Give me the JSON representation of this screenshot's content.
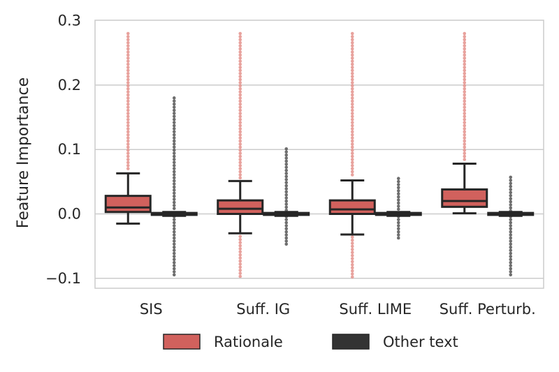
{
  "chart_data": {
    "type": "box",
    "title": "",
    "xlabel": "",
    "ylabel": "Feature Importance",
    "ylim": [
      -0.115,
      0.3
    ],
    "yticks": [
      -0.1,
      0.0,
      0.1,
      0.2,
      0.3
    ],
    "ytick_labels": [
      "−0.1",
      "0.0",
      "0.1",
      "0.2",
      "0.3"
    ],
    "grid": "horizontal",
    "legend_position": "bottom-center",
    "categories": [
      "SIS",
      "Suff. IG",
      "Suff. LIME",
      "Suff. Perturb."
    ],
    "series": [
      {
        "name": "Rationale",
        "color": "#d1615d",
        "outlier_color": "#e4928c",
        "boxes": [
          {
            "q1": 0.003,
            "median": 0.01,
            "q3": 0.028,
            "whisker_low": -0.015,
            "whisker_high": 0.063,
            "outliers_high": [
              0.068,
              0.28
            ],
            "outliers_low": []
          },
          {
            "q1": 0.0,
            "median": 0.008,
            "q3": 0.021,
            "whisker_low": -0.03,
            "whisker_high": 0.051,
            "outliers_high": [
              0.055,
              0.28
            ],
            "outliers_low": [
              -0.035,
              -0.098
            ]
          },
          {
            "q1": 0.0,
            "median": 0.007,
            "q3": 0.021,
            "whisker_low": -0.032,
            "whisker_high": 0.052,
            "outliers_high": [
              0.056,
              0.28
            ],
            "outliers_low": [
              -0.036,
              -0.098
            ]
          },
          {
            "q1": 0.011,
            "median": 0.02,
            "q3": 0.038,
            "whisker_low": 0.001,
            "whisker_high": 0.078,
            "outliers_high": [
              0.083,
              0.28
            ],
            "outliers_low": []
          }
        ]
      },
      {
        "name": "Other text",
        "color": "#333333",
        "outlier_color": "#555555",
        "boxes": [
          {
            "q1": -0.0015,
            "median": 0.0,
            "q3": 0.0015,
            "whisker_low": -0.003,
            "whisker_high": 0.003,
            "outliers_high": [
              0.004,
              0.18
            ],
            "outliers_low": [
              -0.004,
              -0.098
            ]
          },
          {
            "q1": -0.0015,
            "median": 0.0,
            "q3": 0.0015,
            "whisker_low": -0.003,
            "whisker_high": 0.003,
            "outliers_high": [
              0.004,
              0.101
            ],
            "outliers_low": [
              -0.004,
              -0.047
            ]
          },
          {
            "q1": -0.0015,
            "median": 0.0,
            "q3": 0.0015,
            "whisker_low": -0.003,
            "whisker_high": 0.003,
            "outliers_high": [
              0.004,
              0.055
            ],
            "outliers_low": [
              -0.004,
              -0.038
            ]
          },
          {
            "q1": -0.0015,
            "median": 0.0,
            "q3": 0.0015,
            "whisker_low": -0.003,
            "whisker_high": 0.003,
            "outliers_high": [
              0.004,
              0.057
            ],
            "outliers_low": [
              -0.004,
              -0.098
            ]
          }
        ]
      }
    ],
    "legend": [
      "Rationale",
      "Other text"
    ]
  }
}
